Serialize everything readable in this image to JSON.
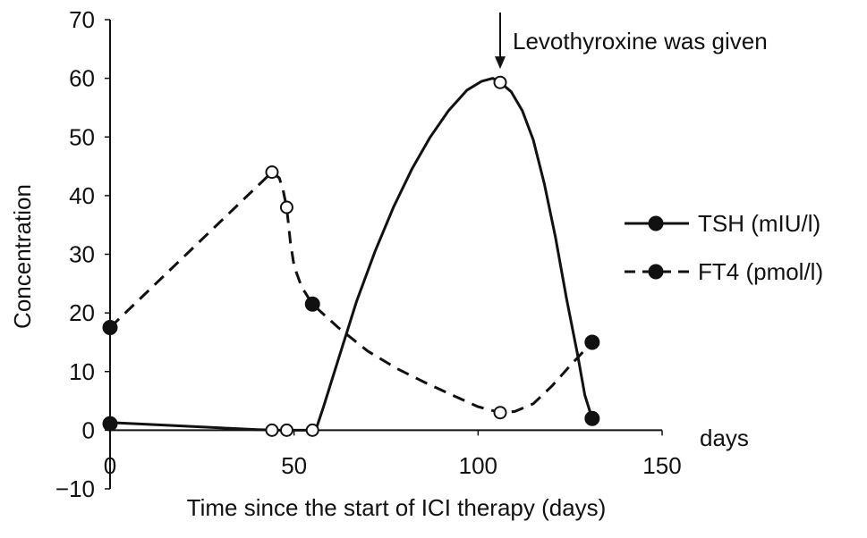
{
  "chart_data": {
    "type": "line",
    "xlabel": "Time since the start of ICI therapy (days)",
    "xaxis_unit_label": "days",
    "ylabel": "Concentration",
    "xlim": [
      0,
      150
    ],
    "ylim": [
      -10,
      70
    ],
    "x_ticks": [
      0,
      50,
      100,
      150
    ],
    "x_tick_labels": [
      "0",
      "50",
      "100",
      "150"
    ],
    "y_ticks": [
      -10,
      0,
      10,
      20,
      30,
      40,
      50,
      60,
      70
    ],
    "y_tick_labels": [
      "−10",
      "0",
      "10",
      "20",
      "30",
      "40",
      "50",
      "60",
      "70"
    ],
    "grid": false,
    "legend_position": "right",
    "annotation": {
      "text": "Levothyroxine was given",
      "x": 106,
      "points_to_y": 61
    },
    "series": [
      {
        "name": "TSH (mIU/l)",
        "line_style": "solid",
        "curve": [
          [
            0,
            1.3
          ],
          [
            10,
            1.0
          ],
          [
            20,
            0.7
          ],
          [
            30,
            0.4
          ],
          [
            40,
            0.1
          ],
          [
            46,
            0
          ],
          [
            49,
            0
          ],
          [
            53,
            0
          ],
          [
            56,
            0.2
          ],
          [
            58,
            4
          ],
          [
            62,
            12
          ],
          [
            67,
            22
          ],
          [
            72,
            30.5
          ],
          [
            77,
            38
          ],
          [
            82,
            44.5
          ],
          [
            87,
            50
          ],
          [
            92,
            54.5
          ],
          [
            97,
            58
          ],
          [
            101,
            59.5
          ],
          [
            104,
            60
          ],
          [
            106,
            59.3
          ],
          [
            109,
            57.7
          ],
          [
            112,
            54.5
          ],
          [
            115,
            49.5
          ],
          [
            118,
            42
          ],
          [
            121,
            33
          ],
          [
            124,
            22.5
          ],
          [
            127,
            13
          ],
          [
            129,
            6
          ],
          [
            131,
            2
          ]
        ],
        "points": [
          {
            "x": 0,
            "y": 1.1,
            "marker": "filled"
          },
          {
            "x": 44,
            "y": 0,
            "marker": "open"
          },
          {
            "x": 48,
            "y": 0,
            "marker": "open"
          },
          {
            "x": 55,
            "y": 0,
            "marker": "open"
          },
          {
            "x": 106,
            "y": 59.3,
            "marker": "open"
          },
          {
            "x": 131,
            "y": 2,
            "marker": "filled"
          }
        ]
      },
      {
        "name": "FT4 (pmol/l)",
        "line_style": "dashed",
        "curve": [
          [
            0,
            17.5
          ],
          [
            44,
            44
          ],
          [
            46,
            43
          ],
          [
            47,
            41
          ],
          [
            48,
            38
          ],
          [
            48.5,
            35
          ],
          [
            49,
            32
          ],
          [
            50,
            28
          ],
          [
            52,
            24.5
          ],
          [
            55,
            21.5
          ],
          [
            62,
            17.5
          ],
          [
            70,
            13.5
          ],
          [
            78,
            10.5
          ],
          [
            86,
            8
          ],
          [
            94,
            5.7
          ],
          [
            100,
            4
          ],
          [
            106,
            3
          ],
          [
            110,
            3.2
          ],
          [
            115,
            4.5
          ],
          [
            120,
            7.5
          ],
          [
            125,
            11
          ],
          [
            131,
            15
          ]
        ],
        "points": [
          {
            "x": 0,
            "y": 17.5,
            "marker": "filled"
          },
          {
            "x": 44,
            "y": 44,
            "marker": "open"
          },
          {
            "x": 48,
            "y": 38,
            "marker": "open"
          },
          {
            "x": 55,
            "y": 21.5,
            "marker": "filled"
          },
          {
            "x": 106,
            "y": 3,
            "marker": "open"
          },
          {
            "x": 131,
            "y": 15,
            "marker": "filled"
          }
        ]
      }
    ]
  }
}
